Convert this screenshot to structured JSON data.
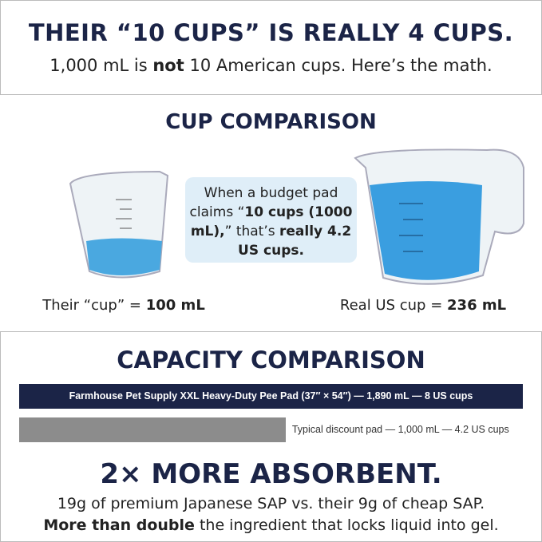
{
  "header": {
    "title": "THEIR “10 CUPS” IS REALLY 4 CUPS.",
    "subtitle": [
      "1,000 mL is ",
      "not",
      " 10 American cups. Here’s the math."
    ]
  },
  "cups": {
    "title": "CUP COMPARISON",
    "callout": [
      "When a budget pad claims “",
      "10 cups (1000 mL),",
      "” that’s ",
      "really 4.2 US cups."
    ],
    "left_label": [
      "Their “cup” = ",
      "100 mL"
    ],
    "right_label": [
      "Real US cup = ",
      "236 mL"
    ]
  },
  "capacity": {
    "title": "CAPACITY COMPARISON",
    "bars": [
      {
        "label": "Farmhouse Pet Supply XXL Heavy-Duty Pee Pad (37″ × 54″) — 1,890 mL — 8 US cups",
        "value": 1890,
        "color": "#1b2447"
      },
      {
        "label": "Typical discount pad — 1,000 mL — 4.2 US cups",
        "value": 1000,
        "color": "#8c8c8c"
      }
    ]
  },
  "footer": {
    "headline": "2× MORE ABSORBENT.",
    "line1": "19g of premium Japanese SAP vs. their 9g of cheap SAP.",
    "line2": [
      "More than double",
      " the ingredient that locks liquid into gel."
    ]
  }
}
